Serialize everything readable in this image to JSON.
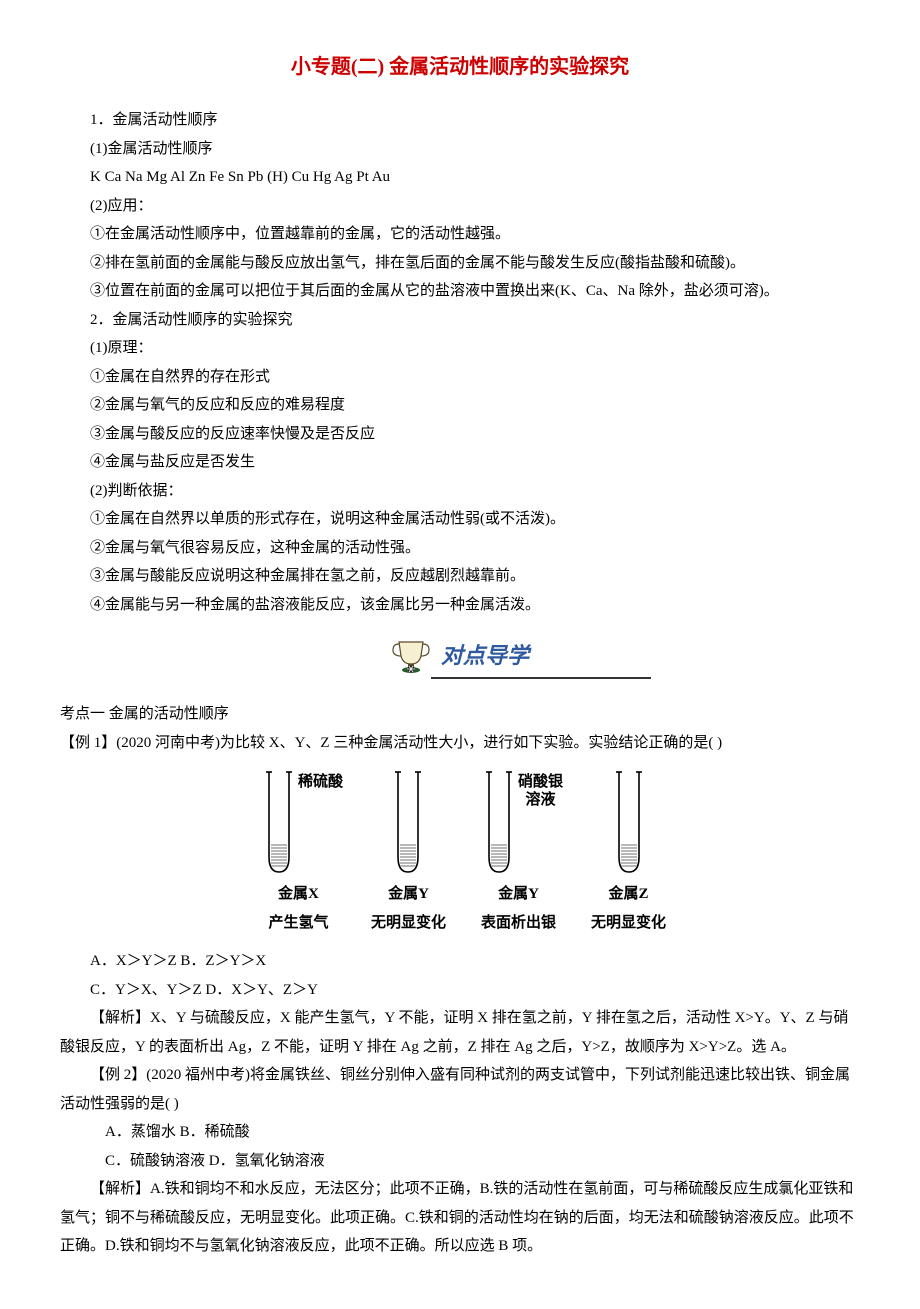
{
  "title_color": "#cc0000",
  "body_color": "#000000",
  "banner_text_color": "#2f5aa0",
  "title": "小专题(二)  金属活动性顺序的实验探究",
  "p1": "1．金属活动性顺序",
  "p2": "(1)金属活动性顺序",
  "p3": "K Ca Na Mg Al Zn Fe Sn Pb  (H)  Cu Hg Ag Pt Au",
  "p4": "(2)应用：",
  "p5": "①在金属活动性顺序中，位置越靠前的金属，它的活动性越强。",
  "p6": "②排在氢前面的金属能与酸反应放出氢气，排在氢后面的金属不能与酸发生反应(酸指盐酸和硫酸)。",
  "p7": "③位置在前面的金属可以把位于其后面的金属从它的盐溶液中置换出来(K、Ca、Na 除外，盐必须可溶)。",
  "p8": "2．金属活动性顺序的实验探究",
  "p9": "(1)原理：",
  "p10": "①金属在自然界的存在形式",
  "p11": "②金属与氧气的反应和反应的难易程度",
  "p12": "③金属与酸反应的反应速率快慢及是否反应",
  "p13": "④金属与盐反应是否发生",
  "p14": "(2)判断依据：",
  "p15": "①金属在自然界以单质的形式存在，说明这种金属活动性弱(或不活泼)。",
  "p16": "②金属与氧气很容易反应，这种金属的活动性强。",
  "p17": "③金属与酸能反应说明这种金属排在氢之前，反应越剧烈越靠前。",
  "p18": "④金属能与另一种金属的盐溶液能反应，该金属比另一种金属活泼。",
  "banner": "对点导学",
  "kd1": "考点一 金属的活动性顺序",
  "ex1": "【例 1】(2020 河南中考)为比较 X、Y、Z 三种金属活动性大小，进行如下实验。实验结论正确的是(   )",
  "diagram": {
    "tubes": [
      {
        "reagent": "稀硫酸",
        "metal": "金属X",
        "phenom": "产生氢气"
      },
      {
        "reagent": "",
        "metal": "金属Y",
        "phenom": "无明显变化"
      },
      {
        "reagent": "硝酸银\n溶液",
        "metal": "金属Y",
        "phenom": "表面析出银"
      },
      {
        "reagent": "",
        "metal": "金属Z",
        "phenom": "无明显变化"
      }
    ],
    "tube_outline": "#000000",
    "tube_bg": "#ffffff",
    "spring_fill": "#888888"
  },
  "ans1a": "A．X＞Y＞Z     B．Z＞Y＞X",
  "ans1b": "C．Y＞X、Y＞Z  D．X＞Y、Z＞Y",
  "exp1": "【解析】X、Y 与硫酸反应，X 能产生氢气，Y 不能，证明 X 排在氢之前，Y 排在氢之后，活动性 X>Y。Y、Z 与硝酸银反应，Y 的表面析出 Ag，Z 不能，证明 Y 排在 Ag 之前，Z 排在 Ag 之后，Y>Z，故顺序为 X>Y>Z。选 A。",
  "ex2": "【例 2】(2020 福州中考)将金属铁丝、铜丝分别伸入盛有同种试剂的两支试管中，下列试剂能迅速比较出铁、铜金属活动性强弱的是(   )",
  "ans2a": "A．蒸馏水  B．稀硫酸",
  "ans2b": "C．硫酸钠溶液  D．氢氧化钠溶液",
  "exp2": "【解析】A.铁和铜均不和水反应，无法区分；此项不正确，B.铁的活动性在氢前面，可与稀硫酸反应生成氯化亚铁和氢气；铜不与稀硫酸反应，无明显变化。此项正确。C.铁和铜的活动性均在钠的后面，均无法和硫酸钠溶液反应。此项不正确。D.铁和铜均不与氢氧化钠溶液反应，此项不正确。所以应选 B 项。"
}
